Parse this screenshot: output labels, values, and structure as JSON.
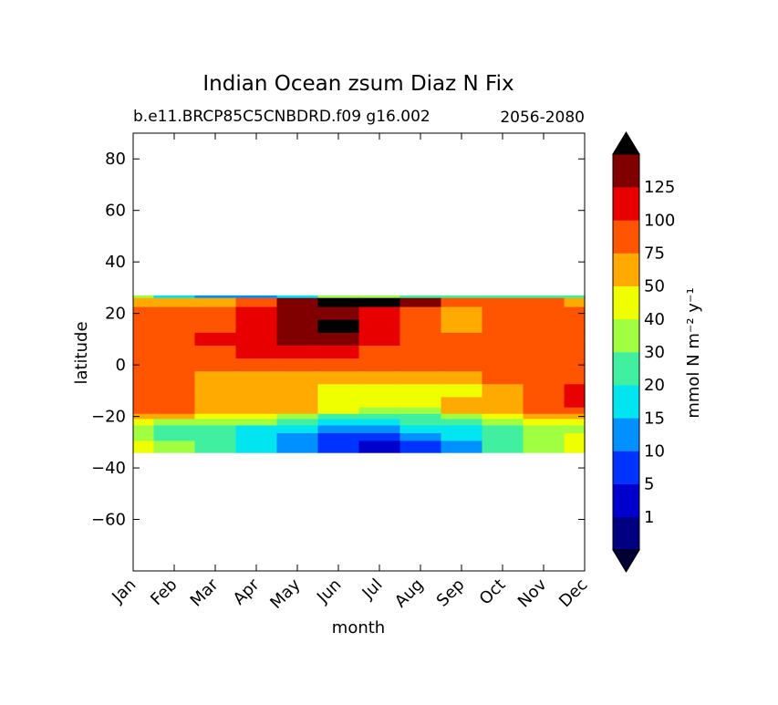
{
  "chart_data": {
    "type": "heatmap",
    "title": "Indian Ocean zsum Diaz N Fix",
    "subtitle_left": "b.e11.BRCP85C5CNBDRD.f09 g16.002",
    "subtitle_right": "2056-2080",
    "xlabel": "month",
    "ylabel": "latitude",
    "x_categories": [
      "Jan",
      "Feb",
      "Mar",
      "Apr",
      "May",
      "Jun",
      "Jul",
      "Aug",
      "Sep",
      "Oct",
      "Nov",
      "Dec"
    ],
    "ylim": [
      -80,
      90
    ],
    "y_ticks": [
      80,
      60,
      40,
      20,
      0,
      -20,
      -40,
      -60
    ],
    "y_tick_labels": [
      "80",
      "60",
      "40",
      "20",
      "0",
      "−20",
      "−40",
      "−60"
    ],
    "data_lat_range": [
      -34,
      27
    ],
    "colorbar": {
      "label": "mmol N m⁻² y⁻¹",
      "extend": "both",
      "levels": [
        0,
        1,
        5,
        10,
        15,
        20,
        30,
        40,
        50,
        75,
        100,
        125,
        150
      ],
      "tick_labels": [
        "1",
        "5",
        "10",
        "15",
        "20",
        "30",
        "40",
        "50",
        "75",
        "100",
        "125"
      ],
      "colors": [
        "#000080",
        "#0000cd",
        "#0033ff",
        "#0090ff",
        "#00e5f0",
        "#40f0a0",
        "#a0ff40",
        "#f0ff00",
        "#ffaa00",
        "#ff5500",
        "#e80000",
        "#800000"
      ],
      "under_color": "#000033",
      "over_color": "#000000"
    },
    "rows": [
      {
        "lat": 27,
        "values": [
          6,
          4,
          3,
          3,
          4,
          6,
          6,
          5,
          5,
          5,
          5,
          5
        ]
      },
      {
        "lat": 25,
        "values": [
          8,
          8,
          8,
          9,
          11,
          12,
          12,
          11,
          9,
          9,
          9,
          8
        ]
      },
      {
        "lat": 20,
        "values": [
          9,
          9,
          9,
          10,
          11,
          11,
          10,
          9,
          8,
          9,
          9,
          9
        ]
      },
      {
        "lat": 15,
        "values": [
          9,
          9,
          9,
          10,
          11,
          12,
          10,
          9,
          8,
          9,
          9,
          9
        ]
      },
      {
        "lat": 10,
        "values": [
          9,
          9,
          10,
          10,
          11,
          11,
          10,
          9,
          9,
          9,
          9,
          9
        ]
      },
      {
        "lat": 5,
        "values": [
          9,
          9,
          9,
          10,
          10,
          10,
          9,
          9,
          9,
          9,
          9,
          9
        ]
      },
      {
        "lat": 0,
        "values": [
          9,
          9,
          9,
          9,
          9,
          9,
          9,
          9,
          9,
          9,
          9,
          9
        ]
      },
      {
        "lat": -5,
        "values": [
          9,
          9,
          8,
          8,
          8,
          8,
          8,
          8,
          8,
          9,
          9,
          9
        ]
      },
      {
        "lat": -10,
        "values": [
          9,
          9,
          8,
          8,
          8,
          7,
          7,
          7,
          7,
          8,
          9,
          10
        ]
      },
      {
        "lat": -15,
        "values": [
          9,
          9,
          8,
          8,
          8,
          7,
          7,
          7,
          8,
          8,
          9,
          10
        ]
      },
      {
        "lat": -18,
        "values": [
          9,
          9,
          8,
          8,
          8,
          7,
          6,
          6,
          8,
          8,
          9,
          9
        ]
      },
      {
        "lat": -20,
        "values": [
          8,
          8,
          7,
          7,
          6,
          5,
          5,
          5,
          6,
          7,
          8,
          8
        ]
      },
      {
        "lat": -22,
        "values": [
          7,
          6,
          6,
          6,
          5,
          4,
          4,
          5,
          5,
          6,
          7,
          7
        ]
      },
      {
        "lat": -25,
        "values": [
          6,
          5,
          5,
          4,
          4,
          3,
          3,
          4,
          4,
          5,
          6,
          6
        ]
      },
      {
        "lat": -28,
        "values": [
          6,
          5,
          5,
          4,
          3,
          2,
          2,
          3,
          4,
          5,
          6,
          7
        ]
      },
      {
        "lat": -31,
        "values": [
          7,
          6,
          5,
          4,
          3,
          2,
          1,
          2,
          3,
          5,
          6,
          7
        ]
      },
      {
        "lat": -34,
        "values": [
          7,
          6,
          5,
          4,
          3,
          2,
          1,
          2,
          3,
          5,
          6,
          7
        ]
      }
    ]
  }
}
